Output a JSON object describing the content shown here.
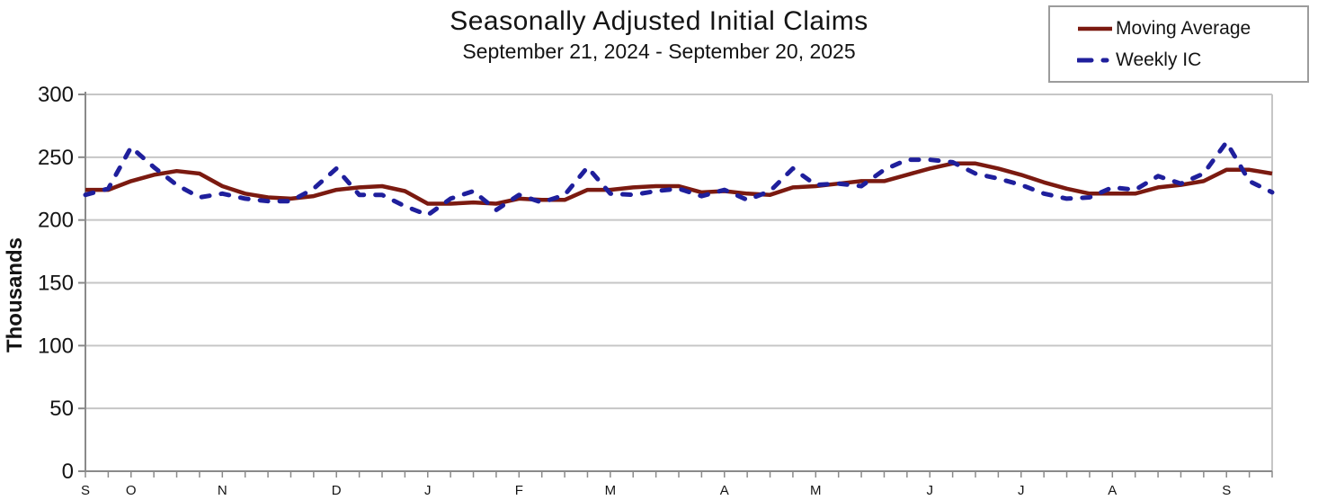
{
  "title": "Seasonally Adjusted Initial Claims",
  "subtitle": "September 21, 2024 - September 20, 2025",
  "y_axis": {
    "label": "Thousands"
  },
  "legend": {
    "items": [
      {
        "label": "Moving Average",
        "color": "#7b1a10",
        "line_style": "solid"
      },
      {
        "label": "Weekly IC",
        "color": "#1f1f9c",
        "line_style": "dashed"
      }
    ]
  },
  "colors": {
    "moving_average": "#7b1a10",
    "weekly_ic": "#1f1f9c",
    "gridline": "#c6c6c6",
    "axis": "#8a8a8a",
    "text": "#141414",
    "legend_border": "#9c9c9c"
  },
  "chart_data": {
    "type": "line",
    "title": "Seasonally Adjusted Initial Claims",
    "subtitle": "September 21, 2024 - September 20, 2025",
    "ylabel": "Thousands",
    "ylim": [
      0,
      300
    ],
    "yticks": [
      0,
      50,
      100,
      150,
      200,
      250,
      300
    ],
    "grid": "horizontal",
    "legend_position": "top-right",
    "weeks_total": 53,
    "x_description": "53 weekly points from week ending Sep 21 2024 to Sep 20 2025; month initials mark first week of each month",
    "month_ticks": [
      {
        "label": "S",
        "week": 0
      },
      {
        "label": "O",
        "week": 2
      },
      {
        "label": "N",
        "week": 6
      },
      {
        "label": "D",
        "week": 11
      },
      {
        "label": "J",
        "week": 15
      },
      {
        "label": "F",
        "week": 19
      },
      {
        "label": "M",
        "week": 23
      },
      {
        "label": "A",
        "week": 28
      },
      {
        "label": "M",
        "week": 32
      },
      {
        "label": "J",
        "week": 37
      },
      {
        "label": "J",
        "week": 41
      },
      {
        "label": "A",
        "week": 45
      },
      {
        "label": "S",
        "week": 50
      }
    ],
    "series": [
      {
        "name": "Moving Average",
        "color": "#7b1a10",
        "line_style": "solid",
        "values": [
          224,
          224,
          231,
          236,
          239,
          237,
          227,
          221,
          218,
          217,
          219,
          224,
          226,
          227,
          223,
          213,
          213,
          214,
          213,
          217,
          216,
          216,
          224,
          224,
          226,
          227,
          227,
          222,
          223,
          221,
          220,
          226,
          227,
          229,
          231,
          231,
          236,
          241,
          245,
          245,
          241,
          236,
          230,
          225,
          221,
          221,
          221,
          226,
          228,
          231,
          240,
          240,
          237
        ]
      },
      {
        "name": "Weekly IC",
        "color": "#1f1f9c",
        "line_style": "dashed",
        "values": [
          220,
          225,
          258,
          242,
          228,
          218,
          221,
          217,
          215,
          215,
          225,
          241,
          220,
          220,
          211,
          204,
          217,
          223,
          208,
          220,
          214,
          220,
          242,
          221,
          220,
          223,
          225,
          219,
          224,
          216,
          223,
          241,
          228,
          229,
          227,
          240,
          248,
          248,
          246,
          237,
          233,
          228,
          221,
          217,
          218,
          226,
          224,
          235,
          229,
          237,
          262,
          231,
          222
        ]
      }
    ]
  }
}
